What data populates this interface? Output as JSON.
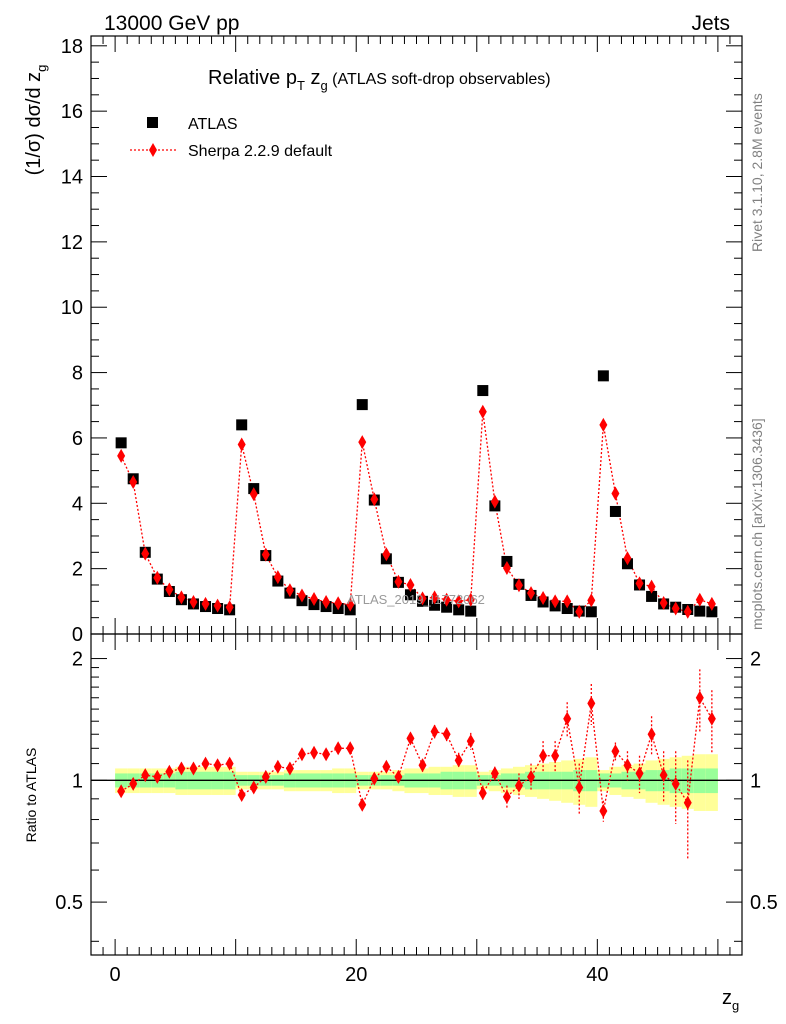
{
  "header": {
    "left": "13000 GeV pp",
    "right": "Jets"
  },
  "side_labels": {
    "rivet": "Rivet 3.1.10,  2.8M events",
    "mcplots": "mcplots.cern.ch [arXiv:1306.3436]"
  },
  "watermark": "ATLAS_2019_I1772062",
  "chart_data": {
    "type": "scatter",
    "title": {
      "main": "Relative p",
      "sub_T": "T",
      "z": " z",
      "sub_g": "g",
      "rest": " (ATLAS soft-drop observables)"
    },
    "ylabel": "(1/σ) dσ/d z",
    "ylabel_sub": "g",
    "xlabel": "z",
    "xlabel_sub": "g",
    "ratio_ylabel": "Ratio to ATLAS",
    "xlim": [
      -2,
      52
    ],
    "ylim": [
      0,
      18.3
    ],
    "ratio_ylim": [
      0.37,
      2.3
    ],
    "ratio_log": true,
    "x_ticks": [
      0,
      20,
      40
    ],
    "y_ticks": [
      0,
      2,
      4,
      6,
      8,
      10,
      12,
      14,
      16,
      18
    ],
    "ratio_ticks": [
      0.5,
      1,
      2
    ],
    "ratio_tick_labels": [
      "0.5",
      "1",
      "2"
    ],
    "legend": {
      "position": "top-left",
      "data_label": "ATLAS",
      "mc_label": "Sherpa 2.2.9 default"
    },
    "colors": {
      "mc": "#ff0000",
      "band_inner": "#99ff99",
      "band_outer": "#ffff99",
      "data": "#000000"
    },
    "x": [
      0.5,
      1.5,
      2.5,
      3.5,
      4.5,
      5.5,
      6.5,
      7.5,
      8.5,
      9.5,
      10.5,
      11.5,
      12.5,
      13.5,
      14.5,
      15.5,
      16.5,
      17.5,
      18.5,
      19.5,
      20.5,
      21.5,
      22.5,
      23.5,
      24.5,
      25.5,
      26.5,
      27.5,
      28.5,
      29.5,
      30.5,
      31.5,
      32.5,
      33.5,
      34.5,
      35.5,
      36.5,
      37.5,
      38.5,
      39.5,
      40.5,
      41.5,
      42.5,
      43.5,
      44.5,
      45.5,
      46.5,
      47.5,
      48.5,
      49.5
    ],
    "data_values": [
      5.85,
      4.75,
      2.5,
      1.68,
      1.3,
      1.05,
      0.92,
      0.84,
      0.78,
      0.74,
      6.4,
      4.45,
      2.4,
      1.62,
      1.25,
      1.02,
      0.9,
      0.84,
      0.78,
      0.74,
      7.02,
      4.1,
      2.3,
      1.58,
      1.2,
      1.0,
      0.88,
      0.82,
      0.74,
      0.7,
      7.45,
      3.92,
      2.22,
      1.52,
      1.18,
      0.98,
      0.86,
      0.78,
      0.7,
      0.68,
      7.9,
      3.75,
      2.15,
      1.5,
      1.15,
      0.92,
      0.82,
      0.75,
      0.7,
      0.68
    ],
    "mc_values": [
      5.45,
      4.65,
      2.46,
      1.72,
      1.36,
      1.12,
      0.98,
      0.92,
      0.87,
      0.82,
      5.8,
      4.28,
      2.43,
      1.74,
      1.34,
      1.18,
      1.07,
      0.98,
      0.94,
      0.9,
      5.87,
      4.12,
      2.44,
      1.6,
      1.5,
      1.09,
      1.12,
      1.05,
      1.0,
      1.05,
      6.8,
      4.05,
      2.02,
      1.49,
      1.25,
      1.1,
      1.0,
      1.0,
      0.68,
      1.03,
      6.4,
      4.3,
      2.32,
      1.55,
      1.45,
      0.95,
      0.78,
      0.68,
      1.05,
      0.92
    ],
    "ratio_values": [
      0.94,
      0.98,
      1.03,
      1.02,
      1.05,
      1.07,
      1.07,
      1.1,
      1.09,
      1.1,
      0.92,
      0.96,
      1.02,
      1.08,
      1.07,
      1.16,
      1.17,
      1.16,
      1.2,
      1.2,
      0.87,
      1.01,
      1.08,
      1.02,
      1.27,
      1.09,
      1.32,
      1.3,
      1.12,
      1.25,
      0.93,
      1.04,
      0.91,
      0.97,
      1.02,
      1.15,
      1.15,
      1.42,
      0.96,
      1.55,
      0.84,
      1.18,
      1.09,
      1.04,
      1.3,
      1.03,
      0.98,
      0.88,
      1.6,
      1.42
    ],
    "ratio_err": [
      0.02,
      0.02,
      0.02,
      0.02,
      0.02,
      0.02,
      0.02,
      0.02,
      0.02,
      0.02,
      0.02,
      0.02,
      0.02,
      0.02,
      0.02,
      0.02,
      0.02,
      0.02,
      0.02,
      0.02,
      0.03,
      0.03,
      0.03,
      0.03,
      0.04,
      0.04,
      0.05,
      0.05,
      0.05,
      0.06,
      0.04,
      0.04,
      0.06,
      0.07,
      0.08,
      0.1,
      0.1,
      0.14,
      0.14,
      0.18,
      0.05,
      0.06,
      0.09,
      0.11,
      0.14,
      0.15,
      0.2,
      0.24,
      0.28,
      0.25
    ],
    "band_inner": [
      0.04,
      0.04,
      0.04,
      0.04,
      0.04,
      0.05,
      0.05,
      0.05,
      0.05,
      0.05,
      0.03,
      0.03,
      0.03,
      0.03,
      0.04,
      0.04,
      0.04,
      0.04,
      0.04,
      0.04,
      0.03,
      0.03,
      0.03,
      0.03,
      0.04,
      0.04,
      0.04,
      0.05,
      0.05,
      0.05,
      0.03,
      0.03,
      0.04,
      0.04,
      0.05,
      0.05,
      0.05,
      0.05,
      0.06,
      0.06,
      0.04,
      0.04,
      0.05,
      0.05,
      0.06,
      0.06,
      0.07,
      0.07,
      0.07,
      0.07
    ],
    "band_outer": [
      0.07,
      0.07,
      0.07,
      0.07,
      0.07,
      0.08,
      0.08,
      0.08,
      0.08,
      0.08,
      0.05,
      0.05,
      0.05,
      0.05,
      0.06,
      0.06,
      0.06,
      0.06,
      0.07,
      0.07,
      0.05,
      0.05,
      0.05,
      0.06,
      0.07,
      0.07,
      0.08,
      0.08,
      0.09,
      0.09,
      0.05,
      0.06,
      0.07,
      0.08,
      0.09,
      0.1,
      0.11,
      0.12,
      0.13,
      0.14,
      0.06,
      0.08,
      0.09,
      0.1,
      0.12,
      0.13,
      0.14,
      0.15,
      0.16,
      0.16
    ]
  }
}
